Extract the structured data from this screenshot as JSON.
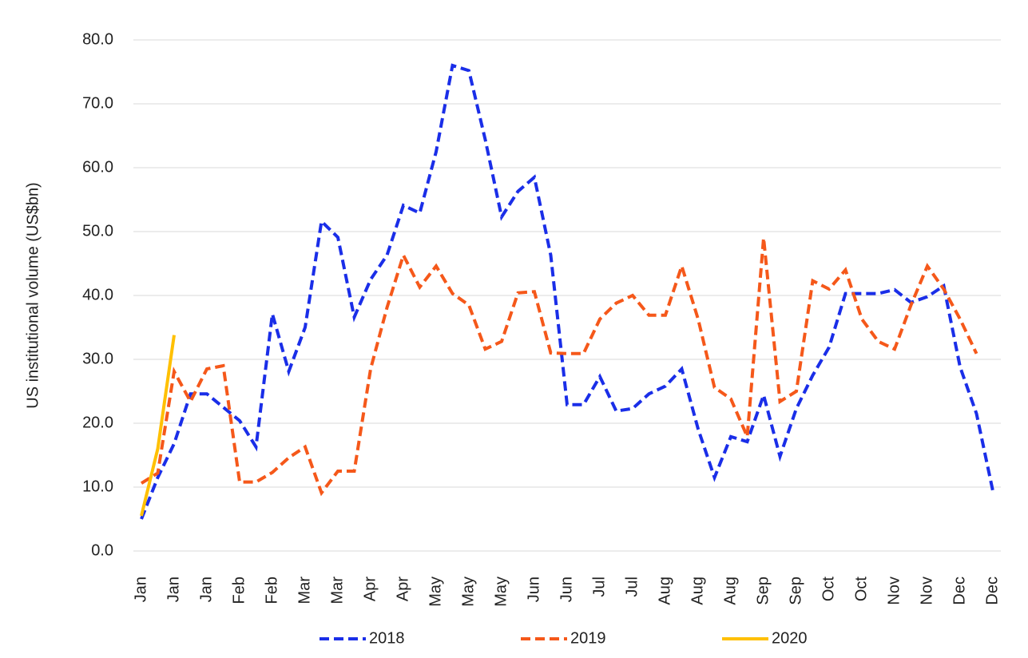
{
  "chart_data": {
    "type": "line",
    "y_label": "US institutional volume (US$bn)",
    "categories": [
      "Jan",
      null,
      "Jan",
      null,
      "Jan",
      null,
      "Feb",
      null,
      "Feb",
      null,
      "Mar",
      null,
      "Mar",
      null,
      "Apr",
      null,
      "Apr",
      null,
      "May",
      null,
      "May",
      null,
      "May",
      null,
      "Jun",
      null,
      "Jun",
      null,
      "Jul",
      null,
      "Jul",
      null,
      "Aug",
      null,
      "Aug",
      null,
      "Aug",
      null,
      "Sep",
      null,
      "Sep",
      null,
      "Oct",
      null,
      "Oct",
      null,
      "Nov",
      null,
      "Nov",
      null,
      "Dec",
      null,
      "Dec"
    ],
    "series": [
      {
        "name": "2018",
        "color": "#1a2ee8",
        "dashed": true,
        "values": [
          5.0,
          11.5,
          16.8,
          24.6,
          24.6,
          22.5,
          20.4,
          16.3,
          37.1,
          28.1,
          35.0,
          51.6,
          49.1,
          36.6,
          42.5,
          46.3,
          54.1,
          52.9,
          62.5,
          76.0,
          75.2,
          64.4,
          52.3,
          56.3,
          58.5,
          46.3,
          22.9,
          22.9,
          27.3,
          21.9,
          22.3,
          24.6,
          25.8,
          28.5,
          19.1,
          11.5,
          17.9,
          17.1,
          24.4,
          14.8,
          22.3,
          27.5,
          31.9,
          40.3,
          40.3,
          40.3,
          40.9,
          38.9,
          39.8,
          41.5,
          28.8,
          21.5,
          9.4
        ]
      },
      {
        "name": "2019",
        "color": "#f5581a",
        "dashed": true,
        "values": [
          10.6,
          12.2,
          28.1,
          23.4,
          28.5,
          29.0,
          10.8,
          10.8,
          12.3,
          14.6,
          16.3,
          9.1,
          12.5,
          12.5,
          28.5,
          38.1,
          46.3,
          41.3,
          44.6,
          40.3,
          38.5,
          31.6,
          32.8,
          40.4,
          40.6,
          31.0,
          30.9,
          30.9,
          36.3,
          38.8,
          40.0,
          36.9,
          36.9,
          44.6,
          36.3,
          25.6,
          23.8,
          17.9,
          49.0,
          23.4,
          25.0,
          42.3,
          41.0,
          44.0,
          36.3,
          32.8,
          31.6,
          38.5,
          44.6,
          41.0,
          36.3,
          30.9,
          null
        ]
      },
      {
        "name": "2020",
        "color": "#ffc000",
        "dashed": false,
        "values": [
          5.5,
          16.0,
          33.8,
          null,
          null,
          null,
          null,
          null,
          null,
          null,
          null,
          null,
          null,
          null,
          null,
          null,
          null,
          null,
          null,
          null,
          null,
          null,
          null,
          null,
          null,
          null,
          null,
          null,
          null,
          null,
          null,
          null,
          null,
          null,
          null,
          null,
          null,
          null,
          null,
          null,
          null,
          null,
          null,
          null,
          null,
          null,
          null,
          null,
          null,
          null,
          null,
          null,
          null
        ]
      }
    ],
    "ylim": [
      0,
      80
    ],
    "yticks": [
      {
        "value": 0,
        "label": "0.0"
      },
      {
        "value": 10,
        "label": "10.0"
      },
      {
        "value": 20,
        "label": "20.0"
      },
      {
        "value": 30,
        "label": "30.0"
      },
      {
        "value": 40,
        "label": "40.0"
      },
      {
        "value": 50,
        "label": "50.0"
      },
      {
        "value": 60,
        "label": "60.0"
      },
      {
        "value": 70,
        "label": "70.0"
      },
      {
        "value": 80,
        "label": "80.0"
      }
    ],
    "grid": true,
    "legend": "bottom"
  }
}
